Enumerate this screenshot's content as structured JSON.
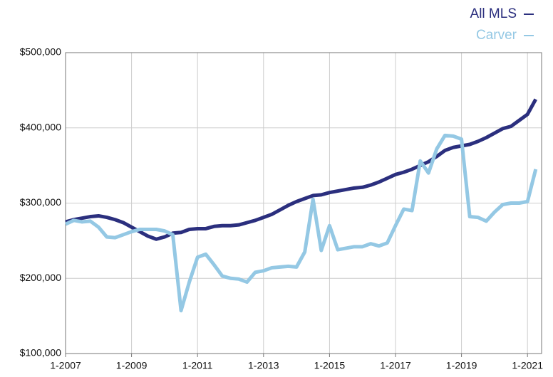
{
  "chart_data": {
    "type": "line",
    "categories": [
      "1-2007",
      null,
      null,
      null,
      null,
      null,
      null,
      null,
      "1-2009",
      null,
      null,
      null,
      null,
      null,
      null,
      null,
      "1-2011",
      null,
      null,
      null,
      null,
      null,
      null,
      null,
      "1-2013",
      null,
      null,
      null,
      null,
      null,
      null,
      null,
      "1-2015",
      null,
      null,
      null,
      null,
      null,
      null,
      null,
      "1-2017",
      null,
      null,
      null,
      null,
      null,
      null,
      null,
      "1-2019",
      null,
      null,
      null,
      null,
      null,
      null,
      null,
      "1-2021",
      null
    ],
    "series": [
      {
        "name": "All MLS",
        "color": "#2b2f7e",
        "values": [
          275000,
          278000,
          280000,
          282000,
          283000,
          281000,
          278000,
          274000,
          268000,
          262000,
          256000,
          252000,
          255000,
          260000,
          261000,
          265000,
          266000,
          266000,
          269000,
          270000,
          270000,
          271000,
          274000,
          277000,
          281000,
          285000,
          291000,
          297000,
          302000,
          306000,
          310000,
          311000,
          314000,
          316000,
          318000,
          320000,
          321000,
          324000,
          328000,
          333000,
          338000,
          341000,
          345000,
          350000,
          355000,
          362000,
          370000,
          374000,
          376000,
          378000,
          382000,
          387000,
          393000,
          399000,
          402000,
          410000,
          418000,
          438000
        ]
      },
      {
        "name": "Carver",
        "color": "#94c8e4",
        "values": [
          272000,
          277000,
          275000,
          276000,
          268000,
          255000,
          254000,
          258000,
          262000,
          265000,
          265000,
          265000,
          263000,
          258000,
          157000,
          195000,
          228000,
          232000,
          218000,
          203000,
          200000,
          199000,
          195000,
          208000,
          210000,
          214000,
          215000,
          216000,
          215000,
          235000,
          305000,
          237000,
          270000,
          238000,
          240000,
          242000,
          242000,
          246000,
          243000,
          247000,
          270000,
          292000,
          290000,
          356000,
          340000,
          372000,
          390000,
          389000,
          385000,
          282000,
          281000,
          276000,
          288000,
          298000,
          300000,
          300000,
          302000,
          345000
        ]
      }
    ],
    "ylim": [
      100000,
      500000
    ],
    "yticks": [
      {
        "value": 100000,
        "label": "$100,000"
      },
      {
        "value": 200000,
        "label": "$200,000"
      },
      {
        "value": 300000,
        "label": "$300,000"
      },
      {
        "value": 400000,
        "label": "$400,000"
      },
      {
        "value": 500000,
        "label": "$500,000"
      }
    ],
    "grid": true,
    "legend": "top-right"
  }
}
